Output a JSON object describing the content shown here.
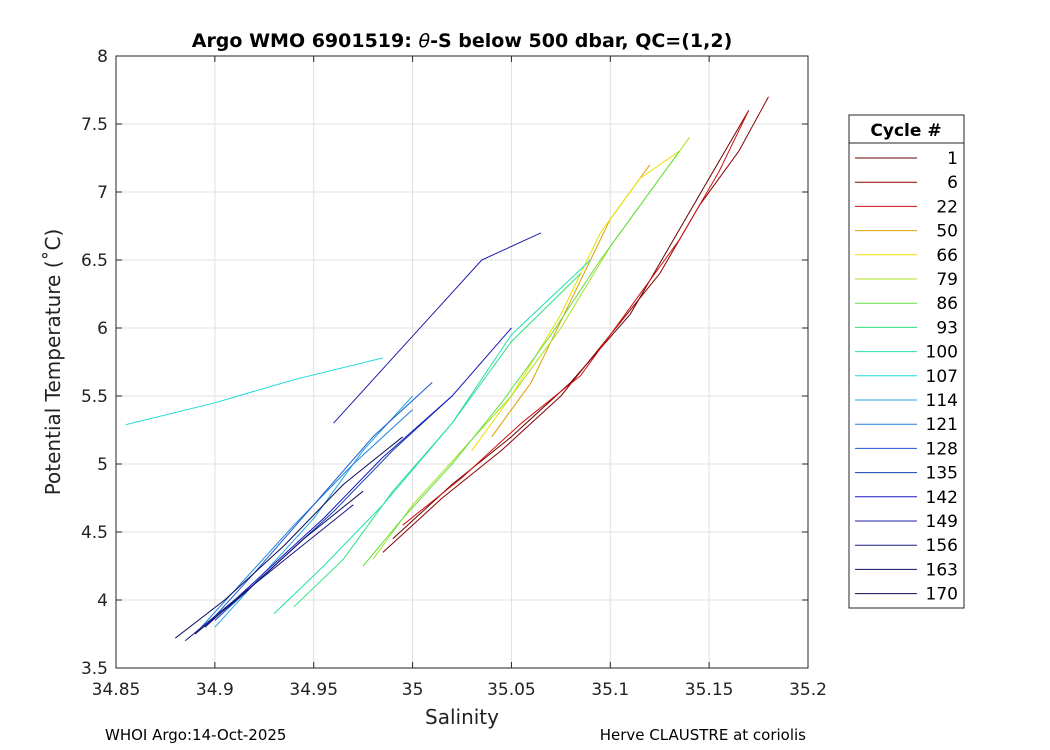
{
  "figure": {
    "footer_left": "WHOI Argo:14-Oct-2025",
    "footer_right": "Herve CLAUSTRE at coriolis"
  },
  "chart_data": {
    "type": "line",
    "title_pre": "Argo WMO 6901519: ",
    "title_theta": "θ",
    "title_post": "-S below 500 dbar,  QC=(1,2)",
    "xlabel": "Salinity",
    "ylabel": "Potential Temperature (˚C)",
    "xlim": [
      34.85,
      35.2
    ],
    "ylim": [
      3.5,
      8
    ],
    "xticks": [
      "34.85",
      "34.9",
      "34.95",
      "35",
      "35.05",
      "35.1",
      "35.15",
      "35.2"
    ],
    "xtick_values": [
      34.85,
      34.9,
      34.95,
      35,
      35.05,
      35.1,
      35.15,
      35.2
    ],
    "yticks": [
      "3.5",
      "4",
      "4.5",
      "5",
      "5.5",
      "6",
      "6.5",
      "7",
      "7.5",
      "8"
    ],
    "ytick_values": [
      3.5,
      4,
      4.5,
      5,
      5.5,
      6,
      6.5,
      7,
      7.5,
      8
    ],
    "grid": true,
    "legend": {
      "title": "Cycle #",
      "placement": "outside-right",
      "entries": [
        {
          "label": "1",
          "color": "#6b0000"
        },
        {
          "label": "6",
          "color": "#8b0000"
        },
        {
          "label": "22",
          "color": "#d41010"
        },
        {
          "label": "50",
          "color": "#dca000"
        },
        {
          "label": "66",
          "color": "#e8e000"
        },
        {
          "label": "79",
          "color": "#a8e020"
        },
        {
          "label": "86",
          "color": "#60e040"
        },
        {
          "label": "93",
          "color": "#30e080"
        },
        {
          "label": "100",
          "color": "#20e0b0"
        },
        {
          "label": "107",
          "color": "#20d8d8"
        },
        {
          "label": "114",
          "color": "#20a8e0"
        },
        {
          "label": "121",
          "color": "#1e80e0"
        },
        {
          "label": "128",
          "color": "#1858d0"
        },
        {
          "label": "135",
          "color": "#1040b0"
        },
        {
          "label": "142",
          "color": "#1818c0"
        },
        {
          "label": "149",
          "color": "#2020a8"
        },
        {
          "label": "156",
          "color": "#181880"
        },
        {
          "label": "163",
          "color": "#101068"
        },
        {
          "label": "170",
          "color": "#0a0a58"
        }
      ]
    },
    "series": [
      {
        "color": "#6b0000",
        "x": [
          34.99,
          35.02,
          35.05,
          35.08,
          35.11,
          35.13,
          35.15,
          35.17
        ],
        "y": [
          4.45,
          4.85,
          5.2,
          5.6,
          6.1,
          6.6,
          7.1,
          7.6
        ]
      },
      {
        "color": "#8b0000",
        "x": [
          34.985,
          35.015,
          35.045,
          35.075,
          35.1,
          35.125,
          35.145,
          35.165,
          35.18
        ],
        "y": [
          4.35,
          4.75,
          5.1,
          5.5,
          5.95,
          6.4,
          6.9,
          7.3,
          7.7
        ]
      },
      {
        "color": "#d41010",
        "x": [
          34.995,
          35.025,
          35.055,
          35.085,
          35.11,
          35.135,
          35.155,
          35.17
        ],
        "y": [
          4.55,
          4.9,
          5.3,
          5.65,
          6.15,
          6.65,
          7.15,
          7.6
        ]
      },
      {
        "color": "#dca000",
        "x": [
          35.04,
          35.06,
          35.08,
          35.1,
          35.12
        ],
        "y": [
          5.2,
          5.6,
          6.2,
          6.8,
          7.2
        ]
      },
      {
        "color": "#e8e000",
        "x": [
          35.03,
          35.05,
          35.075,
          35.095,
          35.115,
          35.135
        ],
        "y": [
          5.1,
          5.5,
          6.1,
          6.7,
          7.1,
          7.3
        ]
      },
      {
        "color": "#a8e020",
        "x": [
          34.98,
          35.0,
          35.025,
          35.05,
          35.075,
          35.1,
          35.125,
          35.14
        ],
        "y": [
          4.3,
          4.7,
          5.1,
          5.5,
          6.0,
          6.6,
          7.1,
          7.4
        ]
      },
      {
        "color": "#60e040",
        "x": [
          34.975,
          34.995,
          35.02,
          35.045,
          35.07,
          35.095,
          35.12,
          35.135
        ],
        "y": [
          4.25,
          4.6,
          5.0,
          5.45,
          5.95,
          6.5,
          7.0,
          7.3
        ]
      },
      {
        "color": "#30e080",
        "x": [
          34.94,
          34.965,
          34.99,
          35.02,
          35.05,
          35.085
        ],
        "y": [
          3.95,
          4.3,
          4.8,
          5.3,
          5.9,
          6.4
        ]
      },
      {
        "color": "#20e0b0",
        "x": [
          34.93,
          34.955,
          34.985,
          35.02,
          35.05,
          35.09
        ],
        "y": [
          3.9,
          4.25,
          4.7,
          5.3,
          5.95,
          6.5
        ]
      },
      {
        "color": "#20d8d8",
        "x": [
          34.855,
          34.9,
          34.94,
          34.985
        ],
        "y": [
          5.29,
          5.45,
          5.62,
          5.78
        ]
      },
      {
        "color": "#20a8e0",
        "x": [
          34.9,
          34.925,
          34.95,
          34.975,
          35.0
        ],
        "y": [
          3.8,
          4.2,
          4.6,
          5.1,
          5.5
        ]
      },
      {
        "color": "#1e80e0",
        "x": [
          34.89,
          34.915,
          34.94,
          34.97,
          35.0
        ],
        "y": [
          3.75,
          4.15,
          4.55,
          5.0,
          5.4
        ]
      },
      {
        "color": "#1858d0",
        "x": [
          34.895,
          34.92,
          34.95,
          34.98,
          35.01
        ],
        "y": [
          3.8,
          4.2,
          4.7,
          5.2,
          5.6
        ]
      },
      {
        "color": "#1040b0",
        "x": [
          34.9,
          34.93,
          34.96,
          34.99,
          35.02
        ],
        "y": [
          3.85,
          4.25,
          4.65,
          5.1,
          5.5
        ]
      },
      {
        "color": "#1818c0",
        "x": [
          34.895,
          34.925,
          34.955,
          34.985,
          35.02,
          35.05
        ],
        "y": [
          3.8,
          4.2,
          4.6,
          5.05,
          5.5,
          6.0
        ]
      },
      {
        "color": "#2020a8",
        "x": [
          34.96,
          34.985,
          35.01,
          35.035,
          35.065
        ],
        "y": [
          5.3,
          5.7,
          6.1,
          6.5,
          6.7
        ]
      },
      {
        "color": "#181880",
        "x": [
          34.885,
          34.91,
          34.94,
          34.97
        ],
        "y": [
          3.7,
          4.0,
          4.35,
          4.7
        ]
      },
      {
        "color": "#101068",
        "x": [
          34.89,
          34.915,
          34.945,
          34.975
        ],
        "y": [
          3.75,
          4.05,
          4.45,
          4.8
        ]
      },
      {
        "color": "#0a0a58",
        "x": [
          34.88,
          34.905,
          34.935,
          34.965,
          34.995
        ],
        "y": [
          3.72,
          4.0,
          4.4,
          4.85,
          5.2
        ]
      }
    ]
  }
}
